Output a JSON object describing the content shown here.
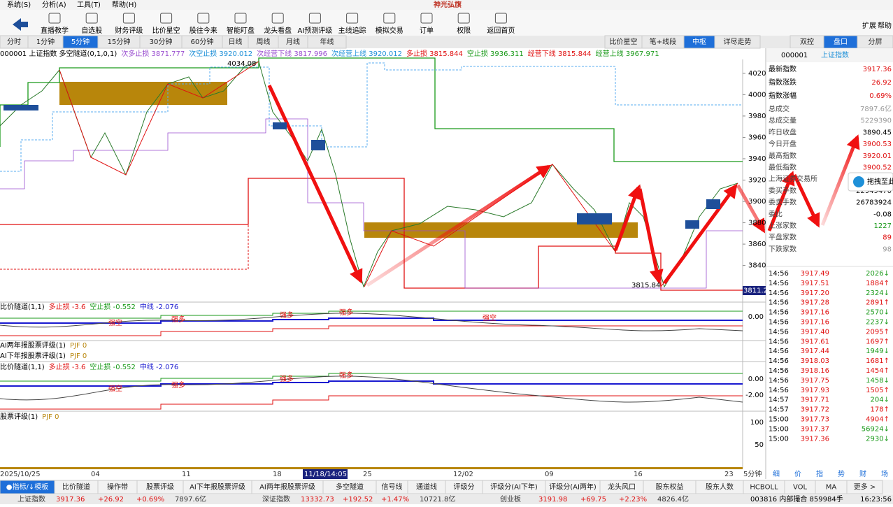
{
  "menu": [
    "系统(S)",
    "分析(A)",
    "工具(T)",
    "帮助(H)"
  ],
  "logo": "神光弘旗",
  "toolbar": [
    "直播教学",
    "自选股",
    "财务评级",
    "比价星空",
    "股往今来",
    "智能盯盘",
    "龙头看盘",
    "AI预测评级",
    "主线追踪",
    "模拟交易",
    "订单",
    "权限",
    "返回首页"
  ],
  "toolbar_right": [
    "扩展",
    "帮助"
  ],
  "periods": {
    "items": [
      "分时",
      "1分钟",
      "5分钟",
      "15分钟",
      "30分钟",
      "60分钟",
      "日线",
      "周线",
      "月线",
      "年线"
    ],
    "active": 2
  },
  "view_tabs": {
    "items": [
      "比价星空",
      "笔+线段",
      "中枢",
      "详尽走势"
    ],
    "active": 2
  },
  "panel_tabs": {
    "items": [
      "双控",
      "盘口",
      "分屏"
    ],
    "active": 1
  },
  "header": [
    {
      "text": "000001 上证指数  多空隧道(0,1,0,1)",
      "color": "#000000"
    },
    {
      "text": "次多止损 3871.777",
      "color": "#9a4fd0"
    },
    {
      "text": "次空止损 3920.012",
      "color": "#1e90d8"
    },
    {
      "text": "次经营下线 3817.996",
      "color": "#9a4fd0"
    },
    {
      "text": "次经营上线 3920.012",
      "color": "#1e90d8"
    },
    {
      "text": "多止损 3815.844",
      "color": "#e01010"
    },
    {
      "text": "空止损 3936.311",
      "color": "#1a9a1a"
    },
    {
      "text": "经营下线 3815.844",
      "color": "#e01010"
    },
    {
      "text": "经营上线 3967.971",
      "color": "#1a9a1a"
    }
  ],
  "price_axis": {
    "ylim": [
      3807,
      4033
    ],
    "ticks": [
      4020,
      4000,
      3980,
      3960,
      3940,
      3920,
      3900,
      3880,
      3860,
      3840
    ]
  },
  "chart_labels": {
    "high": "4034.08",
    "low": "3815.84",
    "last": "3811.2"
  },
  "indicators": [
    {
      "title": [
        {
          "text": "比价隧道(1,1)",
          "color": "#000000"
        },
        {
          "text": "多止损 -3.6",
          "color": "#e01010"
        },
        {
          "text": "空止损 -0.552",
          "color": "#1a9a1a"
        },
        {
          "text": "中线 -2.076",
          "color": "#1a1ad0"
        }
      ],
      "axis": [
        "0.00"
      ],
      "notes": [
        "强空",
        "强多",
        "强多",
        "强多",
        "强空"
      ]
    },
    {
      "title": [
        {
          "text": "AI两年报股票评级(1)",
          "color": "#000000"
        },
        {
          "text": "PJF 0",
          "color": "#b8860b"
        }
      ]
    },
    {
      "title": [
        {
          "text": "AI下年报股票评级(1)",
          "color": "#000000"
        },
        {
          "text": "PJF 0",
          "color": "#b8860b"
        }
      ]
    },
    {
      "title": [
        {
          "text": "比价隧道(1,1)",
          "color": "#000000"
        },
        {
          "text": "多止损 -3.6",
          "color": "#e01010"
        },
        {
          "text": "空止损 -0.552",
          "color": "#1a9a1a"
        },
        {
          "text": "中线 -2.076",
          "color": "#1a1ad0"
        }
      ],
      "axis": [
        "0.00",
        "-2.00"
      ],
      "notes": [
        "强空",
        "强多",
        "强多",
        "强多"
      ]
    },
    {
      "title": [
        {
          "text": "股票评级(1)",
          "color": "#000000"
        },
        {
          "text": "PJF 0",
          "color": "#b8860b"
        }
      ],
      "axis": [
        "100",
        "50"
      ]
    }
  ],
  "dates": [
    "2025/10/25",
    "04",
    "11",
    "18",
    "11/18/14:05",
    "25",
    "12/02",
    "09",
    "16",
    "23",
    "5分钟"
  ],
  "quote": {
    "code": "000001",
    "name": "上证指数",
    "main": [
      [
        "最新指数",
        "3917.36"
      ],
      [
        "指数涨跌",
        "26.92"
      ],
      [
        "指数涨幅",
        "0.69%"
      ]
    ],
    "stats": [
      [
        "总成交",
        "7897.6亿"
      ],
      [
        "总成交量",
        "5229390"
      ],
      [
        "昨日收盘",
        "3890.45"
      ],
      [
        "今日开盘",
        "3900.53"
      ],
      [
        "最高指数",
        "3920.01"
      ],
      [
        "最低指数",
        "3900.52"
      ],
      [
        "上海证券交易所",
        ""
      ],
      [
        "委买手数",
        "22949470"
      ],
      [
        "委卖手数",
        "26783924"
      ],
      [
        "委比",
        "-0.08"
      ],
      [
        "上涨家数",
        "1227"
      ],
      [
        "平盘家数",
        "89"
      ],
      [
        "下跌家数",
        "98"
      ]
    ],
    "colors": [
      "#e01010",
      "#e01010",
      "#e01010",
      "#999999",
      "#999999",
      "#000000",
      "#e01010",
      "#e01010",
      "#e01010",
      "#000000",
      "#000000",
      "#000000",
      "#1a9a1a",
      "#e01010",
      "#999999",
      "#1a9a1a"
    ],
    "float_btn": "拖拽至此"
  },
  "trades": [
    [
      "14:56",
      "3917.49",
      "2026↓"
    ],
    [
      "14:56",
      "3917.51",
      "1884↑"
    ],
    [
      "14:56",
      "3917.20",
      "2324↓"
    ],
    [
      "14:56",
      "3917.28",
      "2891↑"
    ],
    [
      "14:56",
      "3917.16",
      "2570↓"
    ],
    [
      "14:56",
      "3917.16",
      "2237↓"
    ],
    [
      "14:56",
      "3917.40",
      "2095↑"
    ],
    [
      "14:56",
      "3917.61",
      "1697↑"
    ],
    [
      "14:56",
      "3917.44",
      "1949↓"
    ],
    [
      "14:56",
      "3918.03",
      "1681↑"
    ],
    [
      "14:56",
      "3918.16",
      "1454↑"
    ],
    [
      "14:56",
      "3917.75",
      "1458↓"
    ],
    [
      "14:56",
      "3917.93",
      "1505↑"
    ],
    [
      "14:57",
      "3917.71",
      "204↓"
    ],
    [
      "14:57",
      "3917.72",
      "178↑"
    ],
    [
      "15:00",
      "3917.73",
      "4904↑"
    ],
    [
      "15:00",
      "3917.37",
      "56924↓"
    ],
    [
      "15:00",
      "3917.36",
      "2930↓"
    ]
  ],
  "side_tabs": [
    "细",
    "价",
    "指",
    "势",
    "财",
    "场"
  ],
  "bottom_tabs": {
    "items": [
      "●指标/↓模板",
      "比价隧道",
      "操作带",
      "股票评级",
      "AI下年报股票评级",
      "AI两年报股票评级",
      "多空隧道",
      "信号线",
      "通道线",
      "评级分",
      "评级分(AI下年)",
      "评级分(AI两年)",
      "龙头风口",
      "股东权益",
      "股东人数",
      "HCBOLL",
      "VOL",
      "MA",
      "更多 >"
    ],
    "active": 0
  },
  "status": [
    [
      "上证指数",
      "3917.36",
      "+26.92",
      "+0.69%",
      "7897.6亿"
    ],
    [
      "深证指数",
      "13332.73",
      "+192.52",
      "+1.47%",
      "10721.8亿"
    ],
    [
      "创业板",
      "3191.98",
      "+69.75",
      "+2.23%",
      "4826.4亿"
    ]
  ],
  "status_right": [
    "003816 内部撮合 859984手",
    "16:23:56"
  ]
}
